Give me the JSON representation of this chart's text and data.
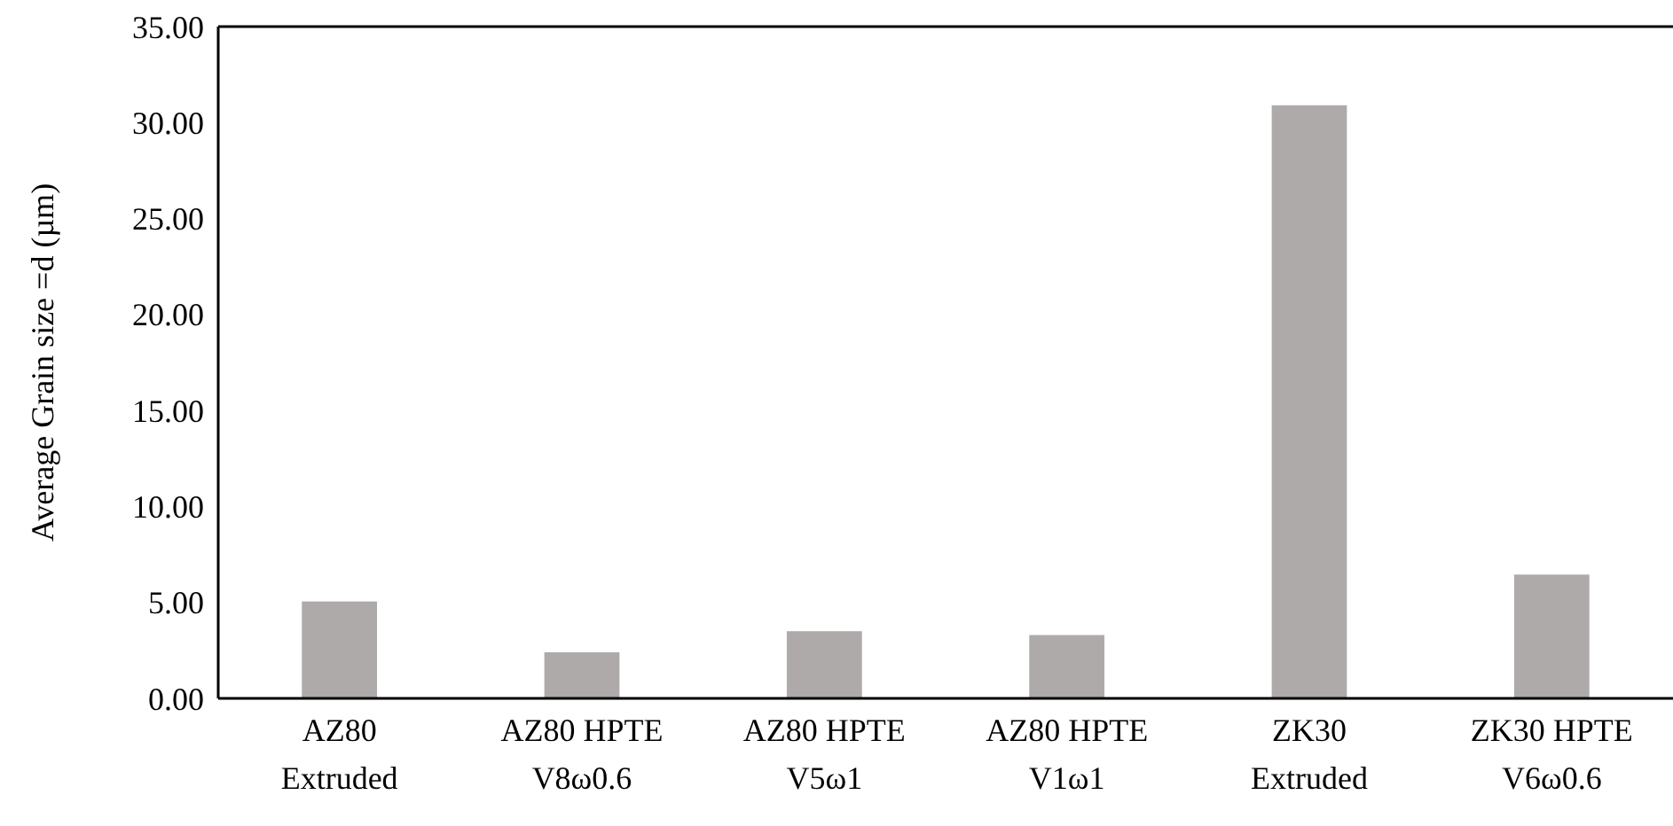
{
  "chart_data": {
    "type": "bar",
    "ylabel": "Average Grain size =d (µm)",
    "categories": [
      "AZ80\nExtruded",
      "AZ80 HPTE\nV8ω0.6",
      "AZ80 HPTE\nV5ω1",
      "AZ80 HPTE\nV1ω1",
      "ZK30\nExtruded",
      "ZK30 HPTE\nV6ω0.6"
    ],
    "values": [
      5.05,
      2.4,
      3.5,
      3.3,
      30.9,
      6.45
    ],
    "color": "#aeaaaa",
    "ylim": [
      0,
      35
    ],
    "yticks": [
      {
        "value": 0,
        "label": "0.00"
      },
      {
        "value": 5,
        "label": "5.00"
      },
      {
        "value": 10,
        "label": "10.00"
      },
      {
        "value": 15,
        "label": "15.00"
      },
      {
        "value": 20,
        "label": "20.00"
      },
      {
        "value": 25,
        "label": "25.00"
      },
      {
        "value": 30,
        "label": "30.00"
      },
      {
        "value": 35,
        "label": "35.00"
      }
    ],
    "grid": false
  }
}
